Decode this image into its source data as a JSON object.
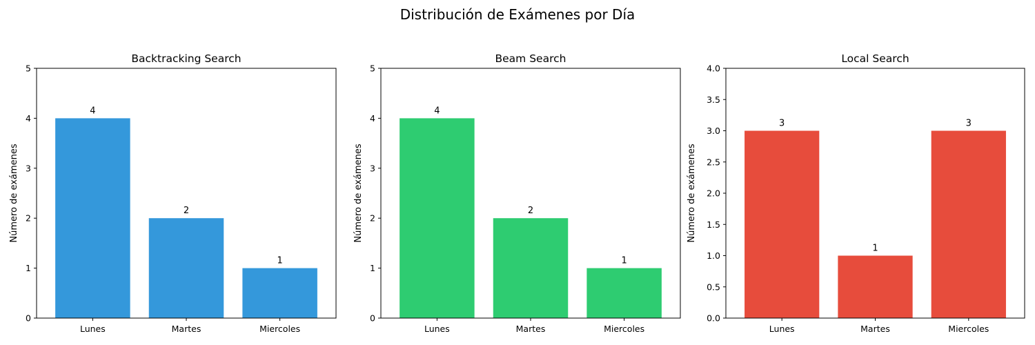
{
  "figure": {
    "title": "Distribución de Exámenes por Día"
  },
  "chart_data": [
    {
      "type": "bar",
      "title": "Backtracking Search",
      "xlabel": "",
      "ylabel": "Número de exámenes",
      "categories": [
        "Lunes",
        "Martes",
        "Miercoles"
      ],
      "values": [
        4,
        2,
        1
      ],
      "ylim": [
        0,
        5
      ],
      "yticks": [
        "0",
        "1",
        "2",
        "3",
        "4",
        "5"
      ],
      "color": "#3498db",
      "data_labels": [
        "4",
        "2",
        "1"
      ],
      "grid": false
    },
    {
      "type": "bar",
      "title": "Beam Search",
      "xlabel": "",
      "ylabel": "Número de exámenes",
      "categories": [
        "Lunes",
        "Martes",
        "Miercoles"
      ],
      "values": [
        4,
        2,
        1
      ],
      "ylim": [
        0,
        5
      ],
      "yticks": [
        "0",
        "1",
        "2",
        "3",
        "4",
        "5"
      ],
      "color": "#2ecc71",
      "data_labels": [
        "4",
        "2",
        "1"
      ],
      "grid": false
    },
    {
      "type": "bar",
      "title": "Local Search",
      "xlabel": "",
      "ylabel": "Número de exámenes",
      "categories": [
        "Lunes",
        "Martes",
        "Miercoles"
      ],
      "values": [
        3,
        1,
        3
      ],
      "ylim": [
        0,
        4
      ],
      "yticks": [
        "0.0",
        "0.5",
        "1.0",
        "1.5",
        "2.0",
        "2.5",
        "3.0",
        "3.5",
        "4.0"
      ],
      "color": "#e74c3c",
      "data_labels": [
        "3",
        "1",
        "3"
      ],
      "grid": false
    }
  ]
}
